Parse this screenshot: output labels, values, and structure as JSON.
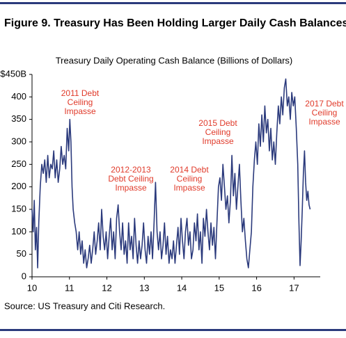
{
  "figure_title": "Figure 9. Treasury Has Been Holding Larger Daily Cash Balances",
  "source": "Source: US Treasury and Citi Research.",
  "chart_data": {
    "type": "line",
    "title": "Treasury Daily Operating Cash Balance (Billions of Dollars)",
    "color": "#2b3a7c",
    "annotation_color": "#e03a2a",
    "annotations": [
      [
        "2011 Debt",
        "Ceiling",
        "Impasse"
      ],
      [
        "2012-2013",
        "Debt Ceiling",
        "Impasse"
      ],
      [
        "2014 Debt",
        "Ceiling",
        "Impasse"
      ],
      [
        "2015 Debt",
        "Ceiling",
        "Impasse"
      ],
      [
        "2017 Debt",
        "Ceiling",
        "Impasse"
      ]
    ],
    "xlim": [
      10,
      17.7
    ],
    "xticks": [
      10,
      11,
      12,
      13,
      14,
      15,
      16,
      17
    ],
    "ylim": [
      0,
      450
    ],
    "yticks": [
      0,
      50,
      100,
      150,
      200,
      250,
      300,
      350,
      400,
      {
        "value": 450,
        "label": "$450B"
      }
    ],
    "x": [
      10.0,
      10.03,
      10.06,
      10.09,
      10.12,
      10.15,
      10.18,
      10.22,
      10.26,
      10.3,
      10.34,
      10.38,
      10.42,
      10.46,
      10.5,
      10.54,
      10.58,
      10.62,
      10.66,
      10.7,
      10.74,
      10.78,
      10.82,
      10.86,
      10.9,
      10.94,
      10.98,
      11.01,
      11.04,
      11.07,
      11.1,
      11.14,
      11.18,
      11.22,
      11.26,
      11.3,
      11.34,
      11.38,
      11.42,
      11.46,
      11.5,
      11.54,
      11.58,
      11.62,
      11.66,
      11.7,
      11.74,
      11.78,
      11.82,
      11.86,
      11.9,
      11.94,
      11.98,
      12.02,
      12.06,
      12.1,
      12.14,
      12.18,
      12.22,
      12.26,
      12.3,
      12.34,
      12.38,
      12.42,
      12.46,
      12.5,
      12.54,
      12.58,
      12.62,
      12.66,
      12.7,
      12.74,
      12.78,
      12.82,
      12.86,
      12.9,
      12.94,
      12.98,
      13.02,
      13.06,
      13.1,
      13.14,
      13.18,
      13.22,
      13.26,
      13.3,
      13.34,
      13.38,
      13.42,
      13.46,
      13.5,
      13.54,
      13.58,
      13.62,
      13.66,
      13.7,
      13.74,
      13.78,
      13.82,
      13.86,
      13.9,
      13.94,
      13.98,
      14.02,
      14.06,
      14.1,
      14.14,
      14.18,
      14.22,
      14.26,
      14.3,
      14.34,
      14.38,
      14.42,
      14.46,
      14.5,
      14.54,
      14.58,
      14.62,
      14.66,
      14.7,
      14.74,
      14.78,
      14.82,
      14.86,
      14.9,
      14.94,
      14.98,
      15.02,
      15.06,
      15.1,
      15.14,
      15.18,
      15.22,
      15.26,
      15.3,
      15.34,
      15.38,
      15.42,
      15.46,
      15.5,
      15.54,
      15.58,
      15.62,
      15.66,
      15.7,
      15.74,
      15.78,
      15.82,
      15.86,
      15.9,
      15.94,
      15.98,
      16.02,
      16.06,
      16.1,
      16.14,
      16.18,
      16.22,
      16.26,
      16.3,
      16.34,
      16.38,
      16.42,
      16.46,
      16.5,
      16.54,
      16.58,
      16.62,
      16.66,
      16.7,
      16.74,
      16.78,
      16.82,
      16.86,
      16.9,
      16.94,
      16.98,
      17.02,
      17.06,
      17.1,
      17.13,
      17.16,
      17.19,
      17.22,
      17.25,
      17.28,
      17.31,
      17.34,
      17.37,
      17.4,
      17.43
    ],
    "values": [
      150,
      100,
      170,
      60,
      110,
      20,
      120,
      200,
      250,
      230,
      260,
      210,
      270,
      220,
      250,
      240,
      280,
      220,
      260,
      210,
      240,
      290,
      250,
      270,
      240,
      330,
      280,
      350,
      300,
      200,
      150,
      120,
      100,
      60,
      100,
      50,
      80,
      30,
      60,
      20,
      40,
      70,
      30,
      60,
      100,
      50,
      80,
      120,
      60,
      150,
      90,
      60,
      100,
      40,
      90,
      130,
      60,
      100,
      40,
      130,
      160,
      100,
      60,
      120,
      50,
      80,
      30,
      120,
      60,
      90,
      40,
      130,
      70,
      30,
      80,
      40,
      70,
      120,
      60,
      30,
      90,
      50,
      100,
      40,
      120,
      210,
      100,
      60,
      100,
      40,
      70,
      120,
      50,
      90,
      30,
      60,
      40,
      80,
      30,
      70,
      110,
      50,
      130,
      80,
      40,
      100,
      130,
      70,
      100,
      40,
      60,
      120,
      80,
      140,
      60,
      100,
      30,
      130,
      90,
      150,
      100,
      60,
      120,
      70,
      110,
      40,
      120,
      200,
      220,
      170,
      250,
      200,
      150,
      180,
      120,
      170,
      270,
      180,
      230,
      150,
      200,
      250,
      170,
      100,
      130,
      80,
      40,
      20,
      60,
      100,
      200,
      260,
      300,
      250,
      340,
      290,
      360,
      300,
      380,
      320,
      350,
      280,
      330,
      260,
      300,
      250,
      320,
      380,
      340,
      400,
      360,
      420,
      440,
      380,
      400,
      350,
      410,
      380,
      400,
      330,
      250,
      120,
      25,
      80,
      150,
      230,
      280,
      210,
      170,
      190,
      160,
      150
    ]
  }
}
